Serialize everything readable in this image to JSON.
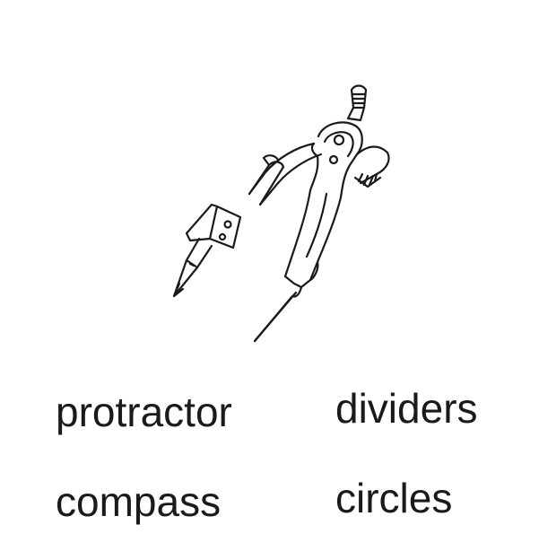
{
  "illustration": {
    "icon": "drawing-compass-icon"
  },
  "options": [
    {
      "label": "protractor"
    },
    {
      "label": "dividers"
    },
    {
      "label": "compass"
    },
    {
      "label": "circles"
    }
  ]
}
